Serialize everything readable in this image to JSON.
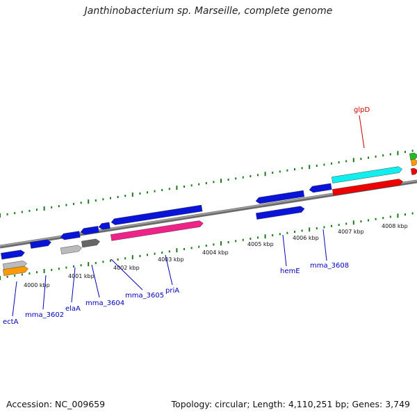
{
  "title": "Janthinobacterium sp. Marseille, complete genome",
  "footer": {
    "accession_label": "Accession:",
    "accession": "NC_009659",
    "topology_label": "Topology:",
    "topology": "circular",
    "length_label": "Length:",
    "length": "4,110,251 bp",
    "genes_label": "Genes:",
    "genes": "3,749"
  },
  "colors": {
    "backbone": "#808080",
    "tick": "#1a7a1a",
    "label_blue": "#0000bb",
    "label_red": "#cc0000",
    "cds_blue": "#0a14d8",
    "cds_red": "#ee0000",
    "cds_cyan": "#11eeee",
    "cds_pink": "#ee2288",
    "cds_gray": "#bbbbbb",
    "cds_darkgray": "#666666",
    "cds_orange": "#ff9900",
    "cds_green": "#22bb22"
  },
  "scale_ticks": [
    {
      "label": "4000 kbp"
    },
    {
      "label": "4001 kbp"
    },
    {
      "label": "4002 kbp"
    },
    {
      "label": "4003 kbp"
    },
    {
      "label": "4004 kbp"
    },
    {
      "label": "4005 kbp"
    },
    {
      "label": "4006 kbp"
    },
    {
      "label": "4007 kbp"
    },
    {
      "label": "4008 kbp"
    }
  ],
  "gene_labels": [
    {
      "name": "ectA",
      "color": "label_blue"
    },
    {
      "name": "mma_3602",
      "color": "label_blue"
    },
    {
      "name": "elaA",
      "color": "label_blue"
    },
    {
      "name": "mma_3604",
      "color": "label_blue"
    },
    {
      "name": "mma_3605",
      "color": "label_blue"
    },
    {
      "name": "priA",
      "color": "label_blue"
    },
    {
      "name": "hemE",
      "color": "label_blue"
    },
    {
      "name": "mma_3608",
      "color": "label_blue"
    },
    {
      "name": "glpD",
      "color": "label_red"
    }
  ]
}
